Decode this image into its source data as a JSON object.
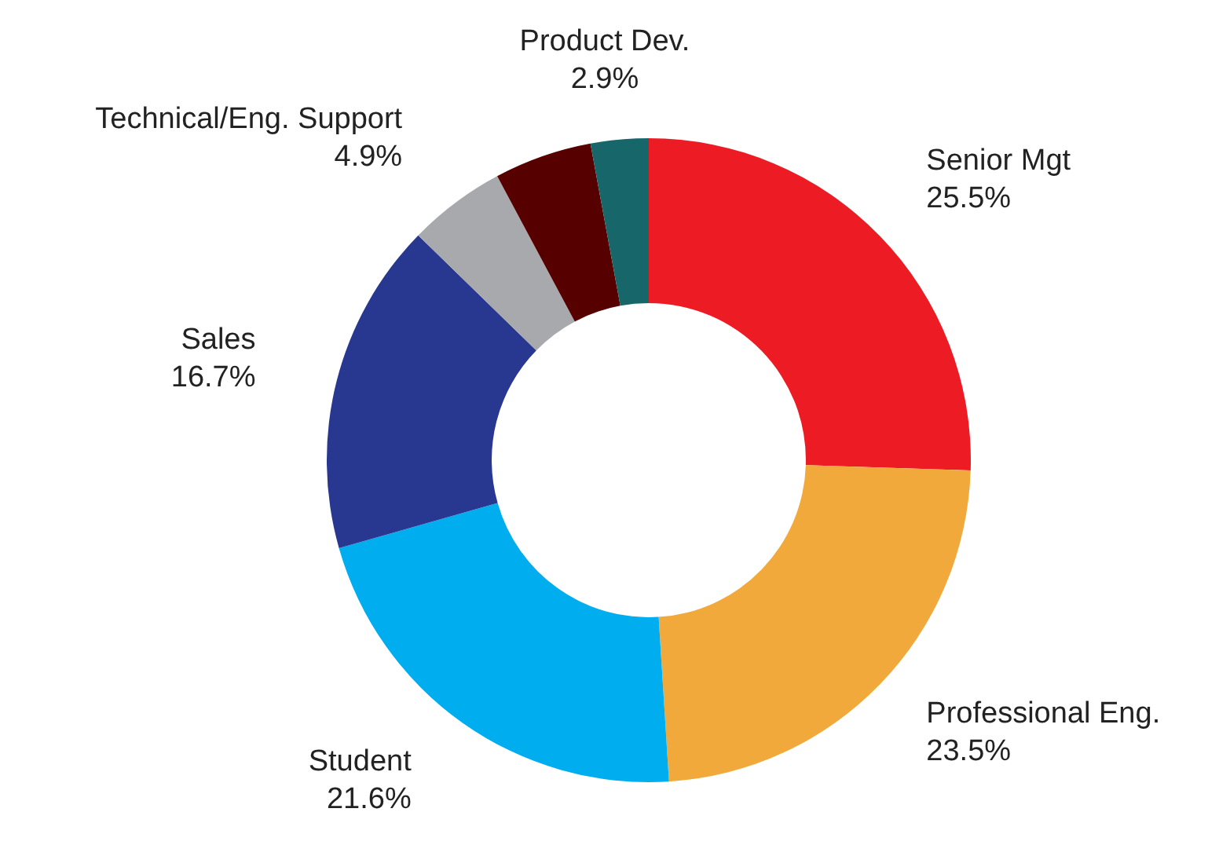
{
  "chart_data": {
    "type": "donut",
    "categories": [
      "Senior Mgt",
      "Professional Eng.",
      "Student",
      "Sales",
      "Technical/Eng. Support",
      null,
      "Product Dev."
    ],
    "values": [
      25.5,
      23.5,
      21.6,
      16.7,
      4.9,
      4.9,
      2.9
    ],
    "value_labels": [
      "25.5%",
      "23.5%",
      "21.6%",
      "16.7%",
      "4.9%",
      null,
      "2.9%"
    ],
    "colors": [
      "#ed1c24",
      "#f2a93b",
      "#00aeef",
      "#283891",
      "#a7a9ac",
      "#560000",
      "#17676a"
    ],
    "legend": false
  }
}
